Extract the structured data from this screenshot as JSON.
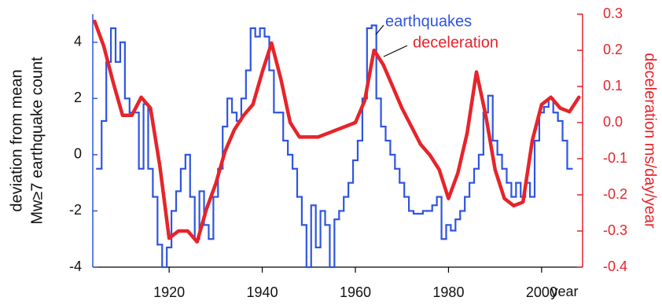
{
  "chart_data": {
    "type": "line",
    "ylabel": [
      "deviation from mean",
      "Mw≥7 earthquake count"
    ],
    "y2label": "deceleration ms/day/year",
    "xlabel": "year",
    "xlim": [
      1903.6,
      2008.8
    ],
    "xticks": [
      1920,
      1940,
      1960,
      1980,
      2000
    ],
    "ylim": [
      -4,
      5
    ],
    "yticks": [
      -4,
      -2,
      0,
      2,
      4
    ],
    "y2lim": [
      -0.4,
      0.3
    ],
    "y2ticks": [
      -0.4,
      -0.3,
      -0.2,
      -0.1,
      {
        "value": 0,
        "label": "0.0"
      },
      0.1,
      0.2,
      0.3
    ],
    "y_color": "#2e55e0",
    "y2_color": "#e6242b",
    "annotations": [
      {
        "text": "earthquakes",
        "color": "#2e55e0"
      },
      {
        "text": "deceleration",
        "color": "#e6242b"
      }
    ],
    "series": [
      {
        "name": "earthquakes",
        "color": "#2e55e0",
        "step": true,
        "x": [
          1905,
          1906,
          1907,
          1908,
          1909,
          1910,
          1911,
          1912,
          1913,
          1914,
          1915,
          1916,
          1917,
          1918,
          1919,
          1920,
          1921,
          1922,
          1923,
          1924,
          1925,
          1926,
          1927,
          1928,
          1929,
          1930,
          1931,
          1932,
          1933,
          1934,
          1935,
          1936,
          1937,
          1938,
          1939,
          1940,
          1941,
          1942,
          1943,
          1944,
          1945,
          1946,
          1947,
          1948,
          1949,
          1950,
          1951,
          1952,
          1953,
          1954,
          1955,
          1956,
          1957,
          1958,
          1959,
          1960,
          1961,
          1962,
          1963,
          1964,
          1965,
          1966,
          1967,
          1968,
          1969,
          1970,
          1971,
          1972,
          1973,
          1974,
          1975,
          1976,
          1977,
          1978,
          1979,
          1980,
          1981,
          1982,
          1983,
          1984,
          1985,
          1986,
          1987,
          1988,
          1989,
          1990,
          1991,
          1992,
          1993,
          1994,
          1995,
          1996,
          1997,
          1998,
          1999,
          2000,
          2001,
          2002,
          2003,
          2004,
          2005,
          2006
        ],
        "values": [
          -0.5,
          1.2,
          3.3,
          4.5,
          3.3,
          4.0,
          2.0,
          1.5,
          1.5,
          -0.5,
          1.8,
          -0.5,
          -1.5,
          -3.2,
          -4.0,
          -3.3,
          -2.0,
          -1.3,
          -0.5,
          0.0,
          -1.5,
          -3.0,
          -1.3,
          -2.5,
          -3.0,
          -1.5,
          -0.5,
          1.0,
          2.0,
          1.5,
          1.2,
          2.0,
          3.0,
          4.5,
          4.2,
          4.5,
          4.2,
          3.0,
          1.5,
          1.5,
          0.5,
          0.0,
          -0.5,
          -1.5,
          -2.5,
          -4.0,
          -1.8,
          -3.3,
          -2.0,
          -2.5,
          -4.0,
          -2.3,
          -2.0,
          -1.5,
          -1.0,
          -0.2,
          0.5,
          2.0,
          4.5,
          4.6,
          2.0,
          1.0,
          0.5,
          0.0,
          -0.5,
          -1.0,
          -1.5,
          -2.0,
          -2.1,
          -2.1,
          -2.0,
          -2.0,
          -1.8,
          -1.5,
          -3.0,
          -2.5,
          -2.7,
          -2.3,
          -2.0,
          -1.5,
          -1.0,
          -0.5,
          0.0,
          1.5,
          2.1,
          0.5,
          0.0,
          -0.5,
          -1.0,
          -1.5,
          -1.0,
          -1.5,
          -1.0,
          -1.5,
          0.5,
          1.5,
          1.7,
          2.0,
          1.5,
          1.2,
          0.5,
          -0.5
        ]
      },
      {
        "name": "deceleration",
        "color": "#e6242b",
        "axis": "y2",
        "x": [
          1904,
          1906,
          1908,
          1910,
          1912,
          1914,
          1916,
          1918,
          1920,
          1922,
          1924,
          1926,
          1928,
          1930,
          1932,
          1934,
          1936,
          1938,
          1940,
          1942,
          1944,
          1946,
          1948,
          1950,
          1952,
          1954,
          1956,
          1958,
          1960,
          1962,
          1964,
          1966,
          1968,
          1970,
          1972,
          1974,
          1976,
          1978,
          1980,
          1982,
          1984,
          1986,
          1988,
          1990,
          1992,
          1994,
          1996,
          1998,
          2000,
          2002,
          2004,
          2006,
          2008
        ],
        "values": [
          0.28,
          0.21,
          0.11,
          0.02,
          0.02,
          0.07,
          0.04,
          -0.12,
          -0.32,
          -0.3,
          -0.3,
          -0.33,
          -0.24,
          -0.17,
          -0.08,
          -0.02,
          0.02,
          0.05,
          0.14,
          0.22,
          0.12,
          0.0,
          -0.04,
          -0.04,
          -0.04,
          -0.03,
          -0.02,
          -0.01,
          0.0,
          0.06,
          0.2,
          0.16,
          0.1,
          0.04,
          -0.01,
          -0.06,
          -0.09,
          -0.13,
          -0.21,
          -0.14,
          -0.03,
          0.14,
          0.02,
          -0.13,
          -0.21,
          -0.23,
          -0.22,
          -0.05,
          0.05,
          0.07,
          0.04,
          0.03,
          0.07
        ]
      }
    ]
  }
}
